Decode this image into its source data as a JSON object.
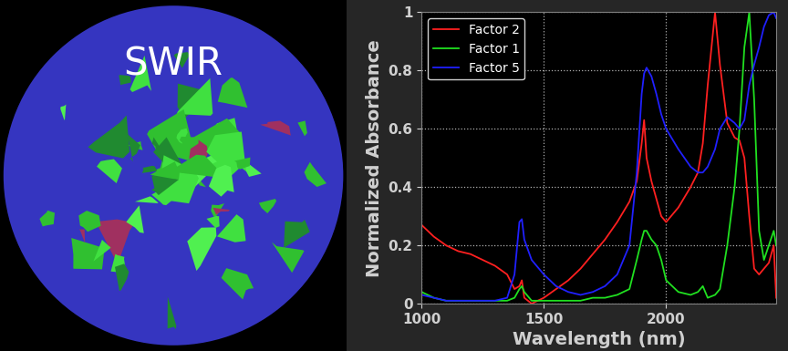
{
  "panel": {
    "text": "SWIR"
  },
  "chart_data": {
    "type": "line",
    "x_label": "Wavelength (nm)",
    "y_label": "Normalized Absorbance",
    "x": [
      1000,
      1050,
      1100,
      1150,
      1200,
      1250,
      1300,
      1350,
      1380,
      1400,
      1410,
      1420,
      1450,
      1500,
      1550,
      1600,
      1650,
      1700,
      1750,
      1800,
      1850,
      1880,
      1900,
      1910,
      1920,
      1940,
      1960,
      1980,
      2000,
      2050,
      2100,
      2130,
      2150,
      2170,
      2200,
      2220,
      2250,
      2280,
      2300,
      2320,
      2340,
      2360,
      2380,
      2400,
      2420,
      2440,
      2450
    ],
    "series": [
      {
        "name": "Factor 2",
        "color": "#ff2020",
        "values": [
          0.27,
          0.23,
          0.2,
          0.18,
          0.17,
          0.15,
          0.13,
          0.1,
          0.05,
          0.06,
          0.08,
          0.02,
          0.0,
          0.02,
          0.05,
          0.08,
          0.12,
          0.17,
          0.22,
          0.28,
          0.35,
          0.42,
          0.55,
          0.63,
          0.5,
          0.42,
          0.36,
          0.3,
          0.28,
          0.33,
          0.4,
          0.45,
          0.55,
          0.75,
          1.0,
          0.82,
          0.62,
          0.57,
          0.56,
          0.5,
          0.3,
          0.12,
          0.1,
          0.12,
          0.14,
          0.2,
          0.02
        ]
      },
      {
        "name": "Factor 1",
        "color": "#20e020",
        "values": [
          0.04,
          0.02,
          0.01,
          0.01,
          0.01,
          0.01,
          0.01,
          0.01,
          0.02,
          0.05,
          0.06,
          0.04,
          0.01,
          0.01,
          0.01,
          0.01,
          0.01,
          0.02,
          0.02,
          0.03,
          0.05,
          0.15,
          0.22,
          0.25,
          0.25,
          0.22,
          0.2,
          0.15,
          0.08,
          0.04,
          0.03,
          0.04,
          0.06,
          0.02,
          0.03,
          0.05,
          0.2,
          0.4,
          0.6,
          0.88,
          1.0,
          0.7,
          0.25,
          0.15,
          0.2,
          0.25,
          0.2
        ]
      },
      {
        "name": "Factor 5",
        "color": "#2020ff",
        "values": [
          0.03,
          0.02,
          0.01,
          0.01,
          0.01,
          0.01,
          0.01,
          0.02,
          0.1,
          0.28,
          0.29,
          0.22,
          0.15,
          0.1,
          0.06,
          0.04,
          0.03,
          0.04,
          0.06,
          0.1,
          0.2,
          0.45,
          0.72,
          0.79,
          0.81,
          0.78,
          0.72,
          0.65,
          0.6,
          0.53,
          0.47,
          0.45,
          0.45,
          0.47,
          0.53,
          0.6,
          0.64,
          0.62,
          0.6,
          0.63,
          0.75,
          0.82,
          0.88,
          0.95,
          0.99,
          1.0,
          0.98
        ]
      }
    ],
    "xlim": [
      1000,
      2450
    ],
    "xticks": [
      1000,
      1500,
      2000
    ],
    "ylim": [
      0,
      1
    ],
    "yticks": [
      0,
      0.2,
      0.4,
      0.6,
      0.8,
      1
    ],
    "grid": true,
    "legend": "upper left"
  }
}
